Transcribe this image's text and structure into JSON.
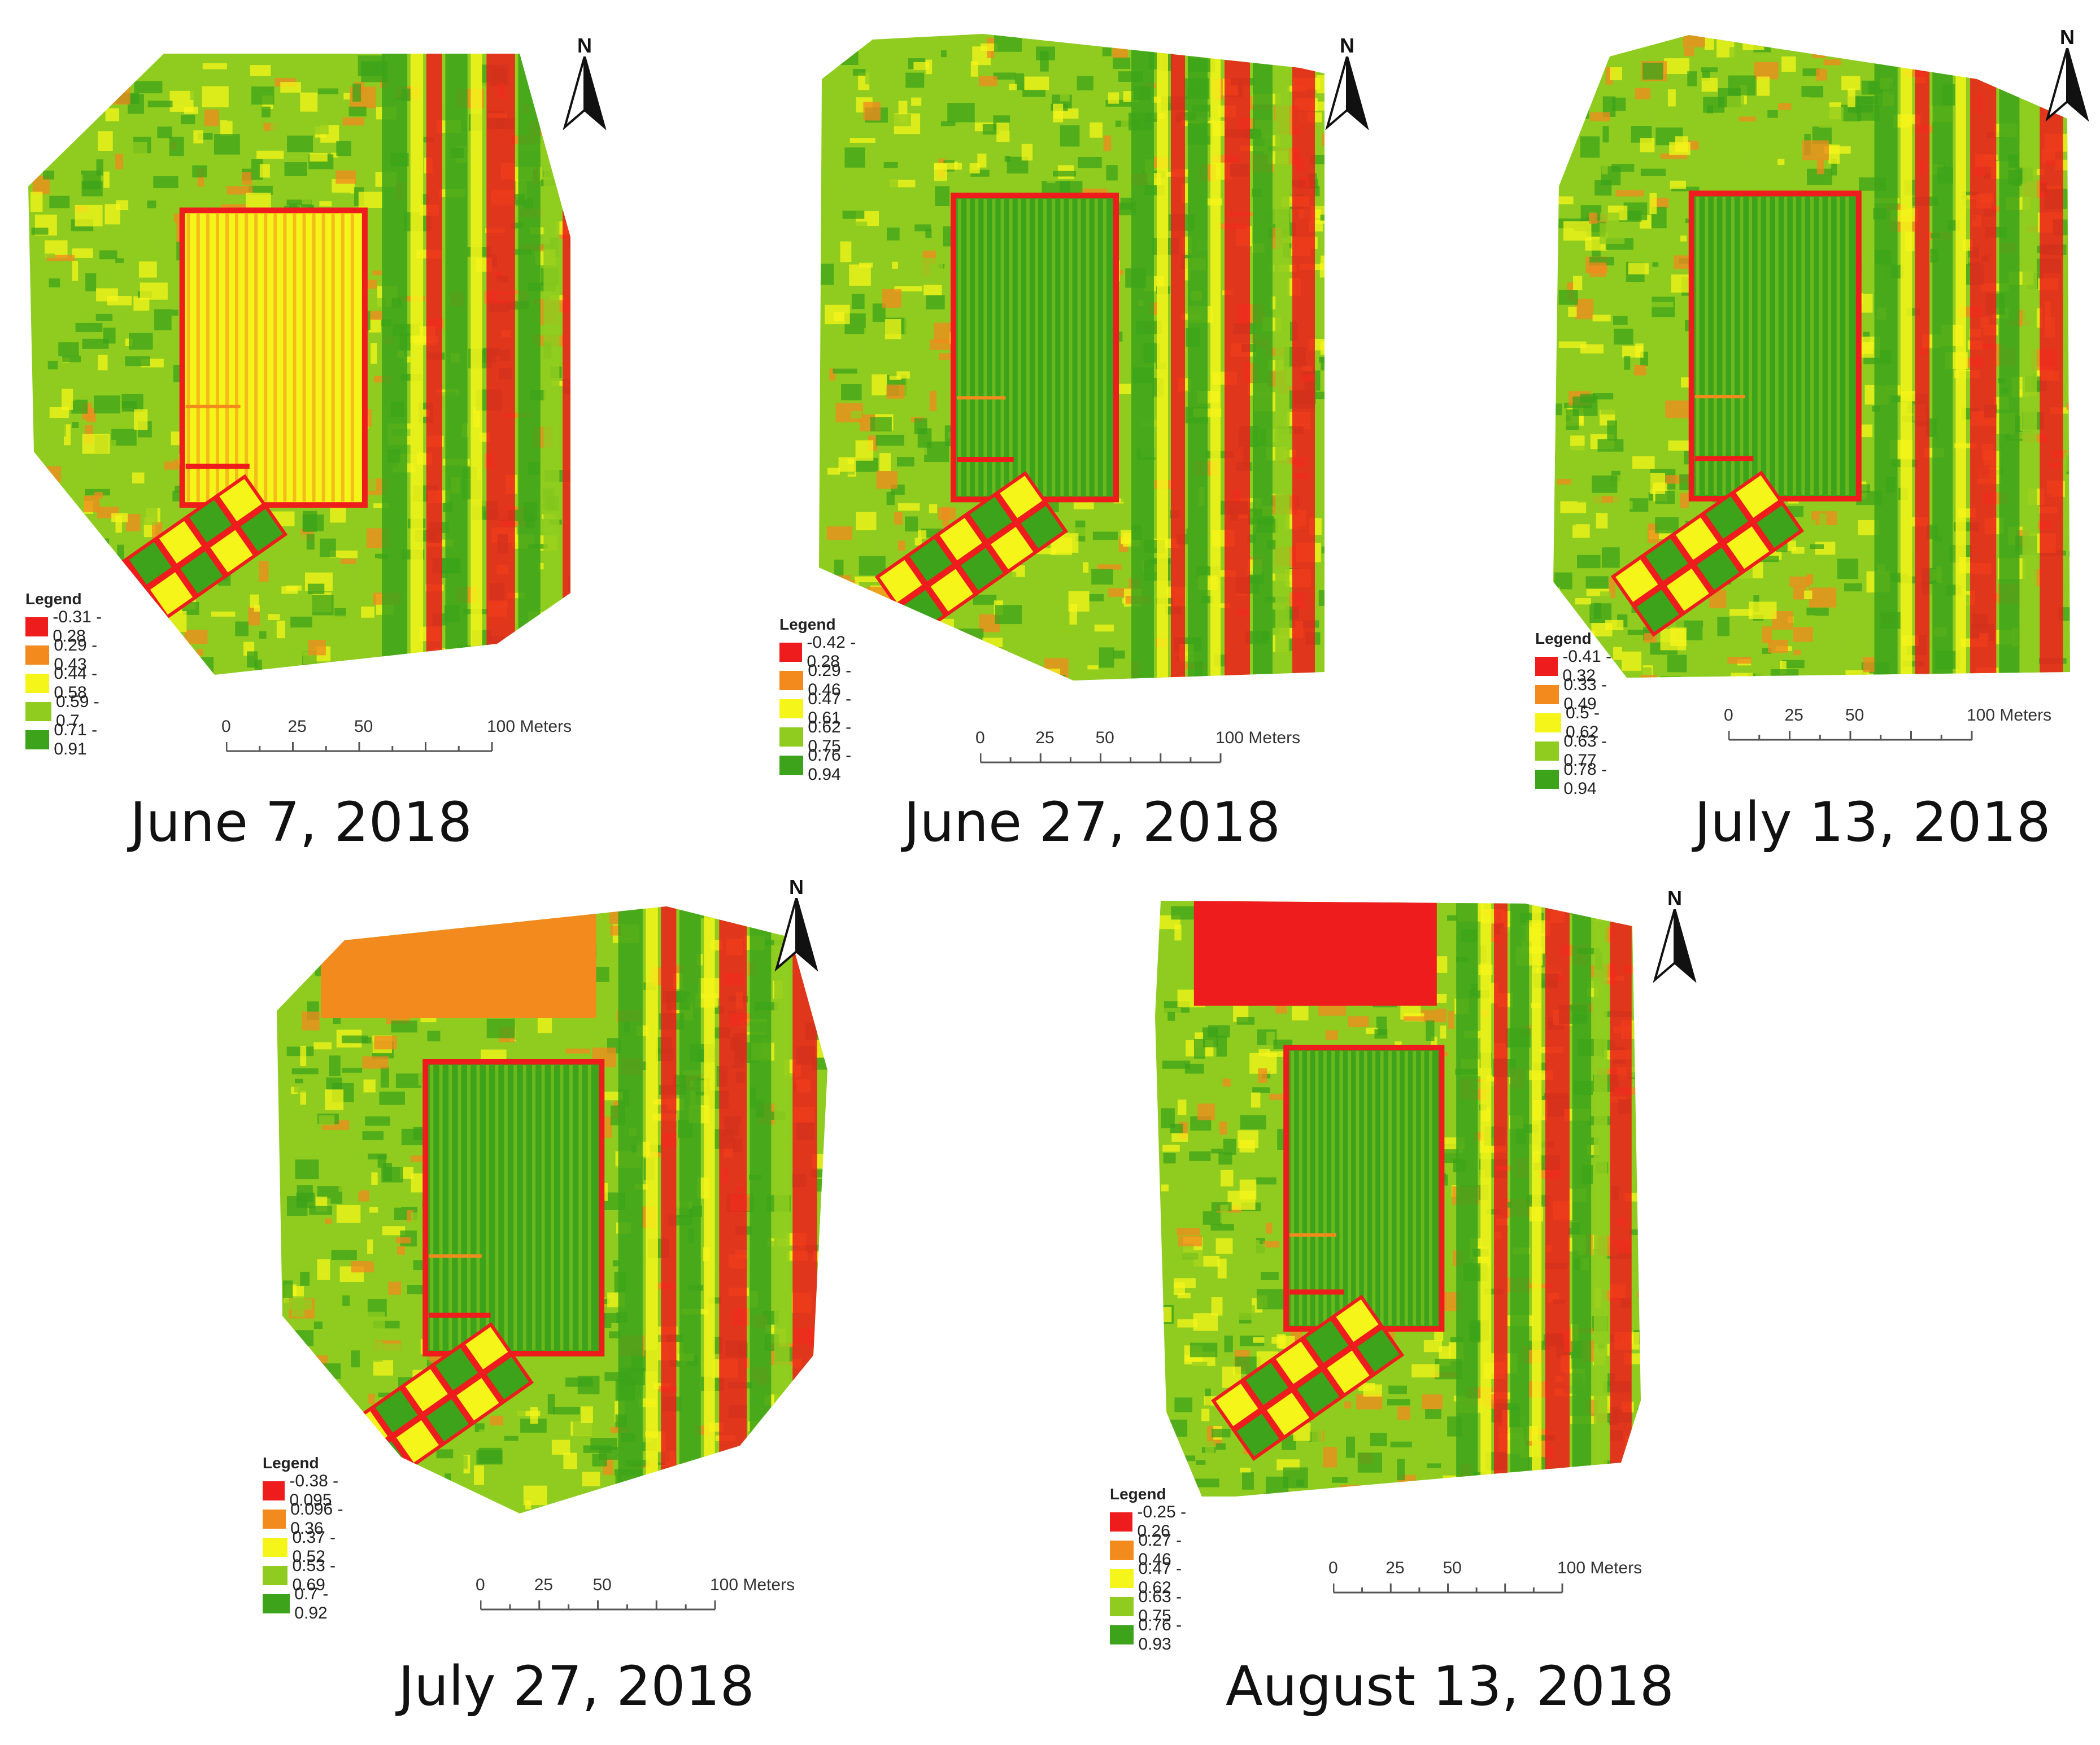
{
  "palette": {
    "class1": "#ee1c1c",
    "class2": "#f28a1e",
    "class3": "#f5f51a",
    "class4": "#8fcc1f",
    "class5": "#3ca31a"
  },
  "north_label": "N",
  "legend_title": "Legend",
  "panels": [
    {
      "date": "June 7, 2018",
      "legend": [
        "-0.31 - 0.28",
        "0.29 - 0.43",
        "0.44 - 0.58",
        "0.59 - 0.7",
        "0.71 - 0.91"
      ],
      "scale": {
        "ticks": [
          "0",
          "25",
          "50",
          "100 Meters"
        ]
      }
    },
    {
      "date": "June 27, 2018",
      "legend": [
        "-0.42 - 0.28",
        "0.29 - 0.46",
        "0.47 - 0.61",
        "0.62 - 0.75",
        "0.76 - 0.94"
      ],
      "scale": {
        "ticks": [
          "0",
          "25",
          "50",
          "100 Meters"
        ]
      }
    },
    {
      "date": "July 13, 2018",
      "legend": [
        "-0.41 - 0.32",
        "0.33 - 0.49",
        "0.5 - 0.62",
        "0.63 - 0.77",
        "0.78 - 0.94"
      ],
      "scale": {
        "ticks": [
          "0",
          "25",
          "50",
          "100 Meters"
        ]
      }
    },
    {
      "date": "July 27, 2018",
      "legend": [
        "-0.38 - 0.095",
        "0.096 - 0.36",
        "0.37 - 0.52",
        "0.53 - 0.69",
        "0.7 - 0.92"
      ],
      "scale": {
        "ticks": [
          "0",
          "25",
          "50",
          "100 Meters"
        ]
      }
    },
    {
      "date": "August 13, 2018",
      "legend": [
        "-0.25 - 0.26",
        "0.27 - 0.46",
        "0.47 - 0.62",
        "0.63 - 0.75",
        "0.76 - 0.93"
      ],
      "scale": {
        "ticks": [
          "0",
          "25",
          "50",
          "100 Meters"
        ]
      }
    }
  ]
}
